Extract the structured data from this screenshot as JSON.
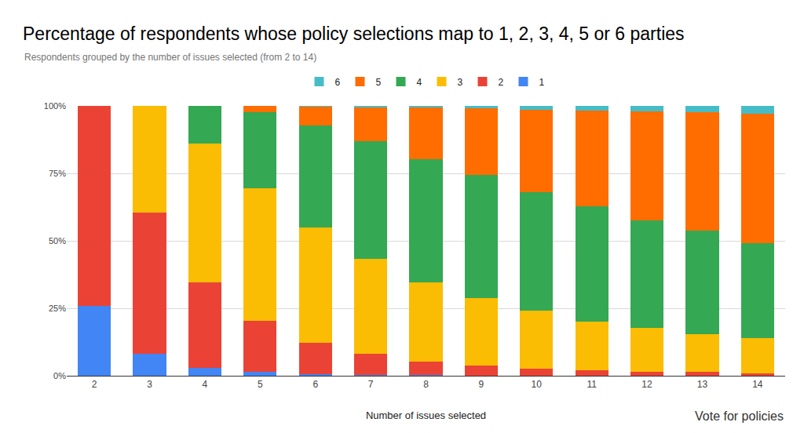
{
  "chart_data": {
    "type": "bar",
    "title": "Percentage of respondents whose policy selections map to 1, 2, 3, 4, 5 or 6 parties",
    "subtitle": "Respondents grouped by the number of issues selected (from 2 to 14)",
    "x_label": "Number of issues selected",
    "annotations": [
      "Vote for policies"
    ],
    "categories": [
      "2",
      "3",
      "4",
      "5",
      "6",
      "7",
      "8",
      "9",
      "10",
      "11",
      "12",
      "13",
      "14"
    ],
    "series": [
      {
        "name": "1",
        "color": "#4285f4",
        "values": [
          26,
          8,
          3,
          1.5,
          0.6,
          0.3,
          0.2,
          0.1,
          0.1,
          0.1,
          0.1,
          0.1,
          0.1
        ]
      },
      {
        "name": "2",
        "color": "#ea4335",
        "values": [
          74,
          52.5,
          31.6,
          18.8,
          11.7,
          7.7,
          5.1,
          3.7,
          2.5,
          1.9,
          1.5,
          1.3,
          0.9
        ]
      },
      {
        "name": "3",
        "color": "#fbbc04",
        "values": [
          0,
          39.5,
          51.4,
          49.2,
          42.7,
          35.3,
          29.3,
          25,
          21.5,
          18,
          16.1,
          14,
          13
        ]
      },
      {
        "name": "4",
        "color": "#34a853",
        "values": [
          0,
          0,
          14,
          28.2,
          37.7,
          43.7,
          45.6,
          45.6,
          43.9,
          42.8,
          39.9,
          38.4,
          35.1
        ]
      },
      {
        "name": "5",
        "color": "#ff6d01",
        "values": [
          0,
          0,
          0,
          2.3,
          7.1,
          12.4,
          19.1,
          24.7,
          30.5,
          35.5,
          40.5,
          43.9,
          48
        ]
      },
      {
        "name": "6",
        "color": "#46bdc6",
        "values": [
          0,
          0,
          0,
          0,
          0.2,
          0.6,
          0.7,
          0.9,
          1.5,
          1.7,
          1.9,
          2.3,
          2.9
        ]
      }
    ],
    "stacked": true,
    "ylim": [
      0,
      100
    ],
    "yticks": [
      {
        "value": 0,
        "label": "0%"
      },
      {
        "value": 25,
        "label": "25%"
      },
      {
        "value": 50,
        "label": "50%"
      },
      {
        "value": 75,
        "label": "75%"
      },
      {
        "value": 100,
        "label": "100%"
      }
    ],
    "grid": true,
    "legend": "top"
  }
}
